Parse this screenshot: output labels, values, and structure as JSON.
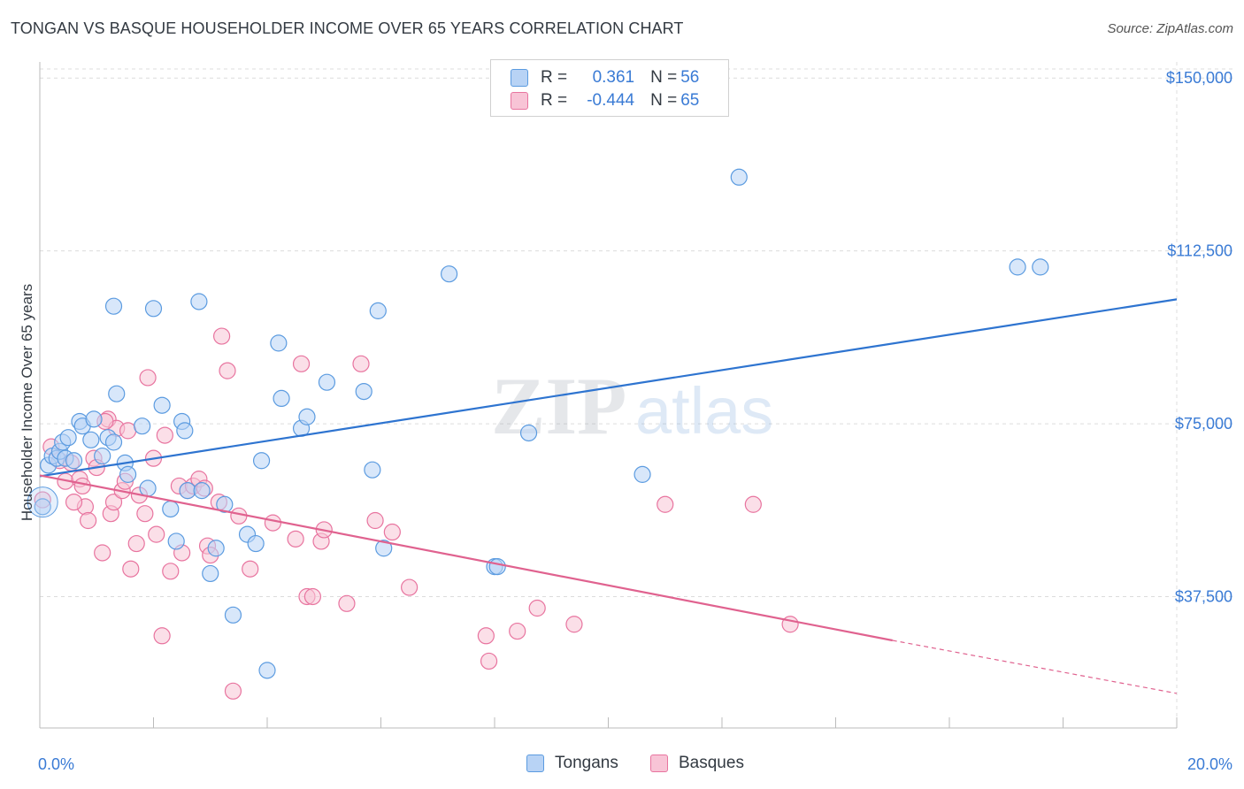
{
  "title": "TONGAN VS BASQUE HOUSEHOLDER INCOME OVER 65 YEARS CORRELATION CHART",
  "source": "Source: ZipAtlas.com",
  "watermark": {
    "zip": "ZIP",
    "atlas": "atlas"
  },
  "colors": {
    "tongans": "#5b9be0",
    "tongans_fill": "#b8d3f5",
    "basques": "#e8749f",
    "basques_fill": "#f8c4d6",
    "axis_text": "#3a7bd5"
  },
  "legend": {
    "rows": [
      {
        "r_label": "R = ",
        "r_value": "0.361",
        "n_label": "N = ",
        "n_value": "56"
      },
      {
        "r_label": "R = ",
        "r_value": "-0.444",
        "n_label": "N = ",
        "n_value": "65"
      }
    ]
  },
  "bottom_legend": {
    "tongans": "Tongans",
    "basques": "Basques"
  },
  "chart_data": {
    "type": "scatter",
    "title": "TONGAN VS BASQUE HOUSEHOLDER INCOME OVER 65 YEARS CORRELATION CHART",
    "ylabel": "Householder Income Over 65 years",
    "xlabel": "",
    "x_ticks": [
      "0.0%",
      "20.0%"
    ],
    "y_ticks": [
      "$150,000",
      "$112,500",
      "$75,000",
      "$37,500"
    ],
    "xlim": [
      0,
      20
    ],
    "ylim": [
      9000,
      153500
    ],
    "grid": true,
    "legend_position": "top-center",
    "series": [
      {
        "name": "Tongans",
        "r": 0.361,
        "n": 56,
        "trend": {
          "x": [
            0,
            20
          ],
          "y": [
            63600,
            102000
          ]
        },
        "points": [
          [
            0.05,
            57000
          ],
          [
            0.15,
            66000
          ],
          [
            0.22,
            68000
          ],
          [
            0.3,
            67500
          ],
          [
            0.35,
            69000
          ],
          [
            0.4,
            71000
          ],
          [
            0.45,
            67500
          ],
          [
            0.5,
            72000
          ],
          [
            0.6,
            67000
          ],
          [
            0.7,
            75500
          ],
          [
            0.75,
            74500
          ],
          [
            0.9,
            71500
          ],
          [
            0.95,
            76000
          ],
          [
            1.1,
            68000
          ],
          [
            1.2,
            72000
          ],
          [
            1.3,
            71000
          ],
          [
            1.35,
            81500
          ],
          [
            1.5,
            66500
          ],
          [
            1.55,
            64000
          ],
          [
            1.8,
            74500
          ],
          [
            1.9,
            61000
          ],
          [
            2.15,
            79000
          ],
          [
            2.3,
            56500
          ],
          [
            2.4,
            49500
          ],
          [
            2.5,
            75500
          ],
          [
            2.55,
            73500
          ],
          [
            2.6,
            60500
          ],
          [
            2.85,
            60500
          ],
          [
            3.0,
            42500
          ],
          [
            3.1,
            48000
          ],
          [
            3.25,
            57500
          ],
          [
            3.4,
            33500
          ],
          [
            3.65,
            51000
          ],
          [
            3.8,
            49000
          ],
          [
            3.9,
            67000
          ],
          [
            4.0,
            21500
          ],
          [
            4.2,
            92500
          ],
          [
            4.25,
            80500
          ],
          [
            4.6,
            74000
          ],
          [
            4.7,
            76500
          ],
          [
            5.05,
            84000
          ],
          [
            5.7,
            82000
          ],
          [
            5.85,
            65000
          ],
          [
            5.95,
            99500
          ],
          [
            6.05,
            48000
          ],
          [
            7.2,
            107500
          ],
          [
            8.0,
            44000
          ],
          [
            8.05,
            44000
          ],
          [
            8.6,
            73000
          ],
          [
            10.6,
            64000
          ],
          [
            12.3,
            128500
          ],
          [
            17.2,
            109000
          ],
          [
            17.6,
            109000
          ],
          [
            2.0,
            100000
          ],
          [
            1.3,
            100500
          ],
          [
            2.8,
            101500
          ]
        ]
      },
      {
        "name": "Basques",
        "r": -0.444,
        "n": 65,
        "trend": {
          "x": [
            0,
            15.0
          ],
          "y": [
            63800,
            28000
          ]
        },
        "trend_dashed": {
          "x": [
            15.0,
            20
          ],
          "y": [
            28000,
            16500
          ]
        },
        "points": [
          [
            0.05,
            58500
          ],
          [
            0.2,
            70000
          ],
          [
            0.35,
            67000
          ],
          [
            0.45,
            62500
          ],
          [
            0.55,
            66500
          ],
          [
            0.7,
            63000
          ],
          [
            0.75,
            61500
          ],
          [
            0.8,
            57000
          ],
          [
            0.85,
            54000
          ],
          [
            0.95,
            67500
          ],
          [
            1.0,
            65500
          ],
          [
            1.1,
            47000
          ],
          [
            1.2,
            76000
          ],
          [
            1.25,
            55500
          ],
          [
            1.3,
            58000
          ],
          [
            1.35,
            74000
          ],
          [
            1.45,
            60500
          ],
          [
            1.5,
            62500
          ],
          [
            1.55,
            73500
          ],
          [
            1.6,
            43500
          ],
          [
            1.7,
            49000
          ],
          [
            1.75,
            59500
          ],
          [
            1.85,
            55500
          ],
          [
            1.9,
            85000
          ],
          [
            2.0,
            67500
          ],
          [
            2.05,
            51000
          ],
          [
            2.15,
            29000
          ],
          [
            2.2,
            72500
          ],
          [
            2.3,
            43000
          ],
          [
            2.45,
            61500
          ],
          [
            2.5,
            47000
          ],
          [
            2.6,
            60500
          ],
          [
            2.7,
            61500
          ],
          [
            2.8,
            63000
          ],
          [
            2.9,
            61000
          ],
          [
            2.95,
            48500
          ],
          [
            3.0,
            46500
          ],
          [
            3.15,
            58000
          ],
          [
            3.2,
            94000
          ],
          [
            3.3,
            86500
          ],
          [
            3.4,
            17000
          ],
          [
            3.7,
            43500
          ],
          [
            4.1,
            53500
          ],
          [
            4.5,
            50000
          ],
          [
            4.6,
            88000
          ],
          [
            4.7,
            37500
          ],
          [
            4.8,
            37500
          ],
          [
            4.95,
            49500
          ],
          [
            5.0,
            52000
          ],
          [
            5.4,
            36000
          ],
          [
            5.65,
            88000
          ],
          [
            5.9,
            54000
          ],
          [
            6.2,
            51500
          ],
          [
            6.5,
            39500
          ],
          [
            7.85,
            29000
          ],
          [
            7.9,
            23500
          ],
          [
            8.4,
            30000
          ],
          [
            8.75,
            35000
          ],
          [
            9.4,
            31500
          ],
          [
            11.0,
            57500
          ],
          [
            12.55,
            57500
          ],
          [
            13.2,
            31500
          ],
          [
            1.15,
            75500
          ],
          [
            3.5,
            55000
          ],
          [
            0.6,
            58000
          ]
        ]
      }
    ]
  }
}
